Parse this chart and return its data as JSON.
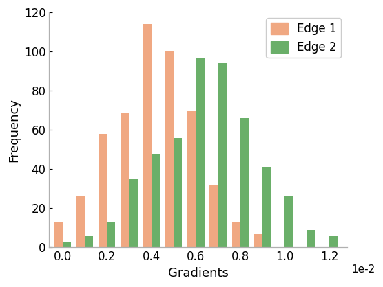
{
  "edge1_values": [
    13,
    26,
    58,
    69,
    114,
    100,
    70,
    32,
    13,
    7,
    0,
    0,
    0
  ],
  "edge2_values": [
    3,
    6,
    13,
    35,
    48,
    56,
    97,
    94,
    66,
    41,
    26,
    9,
    6
  ],
  "bin_centers": [
    0.0,
    0.1,
    0.2,
    0.3,
    0.4,
    0.5,
    0.6,
    0.7,
    0.8,
    0.9,
    1.0,
    1.1,
    1.2
  ],
  "bar_width": 0.038,
  "edge1_color": "#F0A882",
  "edge2_color": "#6AAF69",
  "xlabel": "Gradients",
  "ylabel": "Frequency",
  "xlim": [
    -0.06,
    1.28
  ],
  "ylim": [
    0,
    120
  ],
  "yticks": [
    0,
    20,
    40,
    60,
    80,
    100,
    120
  ],
  "xticks": [
    0.0,
    0.2,
    0.4,
    0.6,
    0.8,
    1.0,
    1.2
  ],
  "xtick_labels": [
    "0.0",
    "0.2",
    "0.4",
    "0.6",
    "0.8",
    "1.0",
    "1.2"
  ],
  "scale_note": "1e-2",
  "legend_labels": [
    "Edge 1",
    "Edge 2"
  ],
  "legend_loc": "upper right",
  "figure_facecolor": "#ffffff",
  "font_size": 13,
  "tick_fontsize": 12
}
